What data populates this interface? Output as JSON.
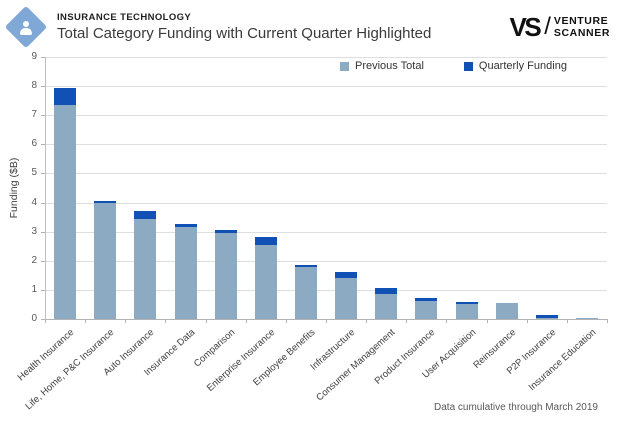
{
  "header": {
    "eyebrow": "INSURANCE TECHNOLOGY",
    "title": "Total Category Funding with Current Quarter Highlighted",
    "logo_icon": "person-diamond-icon"
  },
  "brand": {
    "mark": "VS",
    "slash": "/",
    "name_line1": "VENTURE",
    "name_line2": "SCANNER"
  },
  "footer": {
    "note": "Data cumulative through March 2019"
  },
  "colors": {
    "previous_total": "#8CABC2",
    "quarterly_funding": "#1150B4",
    "logo_diamond": "#7FA8D7",
    "gridline": "#dedede",
    "axis": "#b3b3b3"
  },
  "chart_data": {
    "type": "bar",
    "stacked": true,
    "title": "Total Category Funding with Current Quarter Highlighted",
    "xlabel": "",
    "ylabel": "Funding ($B)",
    "ylim": [
      0,
      9
    ],
    "yticks": [
      0,
      1,
      2,
      3,
      4,
      5,
      6,
      7,
      8,
      9
    ],
    "grid": true,
    "legend_position": "top-center-inside",
    "categories": [
      "Health Insurance",
      "Life, Home, P&C Insurance",
      "Auto Insurance",
      "Insurance Data",
      "Comparison",
      "Enterprise Insurance",
      "Employee Benefits",
      "Infrastructure",
      "Consumer Management",
      "Product Insurance",
      "User Acquisition",
      "Reinsurance",
      "P2P Insurance",
      "Insurance Education"
    ],
    "series": [
      {
        "name": "Previous Total",
        "color": "#8CABC2",
        "values": [
          7.35,
          4.0,
          3.45,
          3.15,
          2.95,
          2.55,
          1.8,
          1.4,
          0.85,
          0.62,
          0.52,
          0.54,
          0.05,
          0.04
        ]
      },
      {
        "name": "Quarterly Funding",
        "color": "#1150B4",
        "values": [
          0.6,
          0.05,
          0.25,
          0.1,
          0.1,
          0.25,
          0.05,
          0.2,
          0.2,
          0.1,
          0.05,
          0,
          0.1,
          0
        ]
      }
    ]
  }
}
